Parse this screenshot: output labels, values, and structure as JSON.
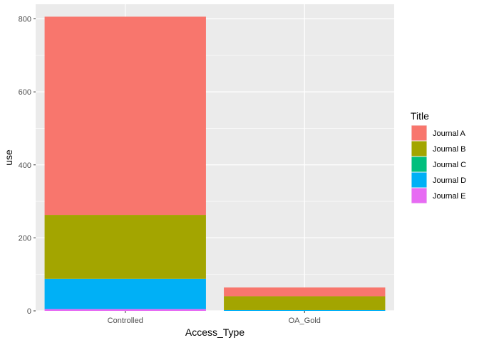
{
  "chart_data": {
    "type": "bar",
    "stacked": true,
    "xlabel": "Access_Type",
    "ylabel": "use",
    "categories": [
      "Controlled",
      "OA_Gold"
    ],
    "ylim": [
      0,
      840
    ],
    "yticks": [
      0,
      200,
      400,
      600,
      800
    ],
    "grid": true,
    "legend": {
      "title": "Title",
      "position": "right"
    },
    "series": [
      {
        "name": "Journal A",
        "color": "#F8766D",
        "values": [
          543,
          24
        ]
      },
      {
        "name": "Journal B",
        "color": "#A3A500",
        "values": [
          175,
          38
        ]
      },
      {
        "name": "Journal C",
        "color": "#00BF7D",
        "values": [
          0,
          0
        ]
      },
      {
        "name": "Journal D",
        "color": "#00B0F6",
        "values": [
          83,
          2
        ]
      },
      {
        "name": "Journal E",
        "color": "#E76BF3",
        "values": [
          5,
          0
        ]
      }
    ]
  }
}
